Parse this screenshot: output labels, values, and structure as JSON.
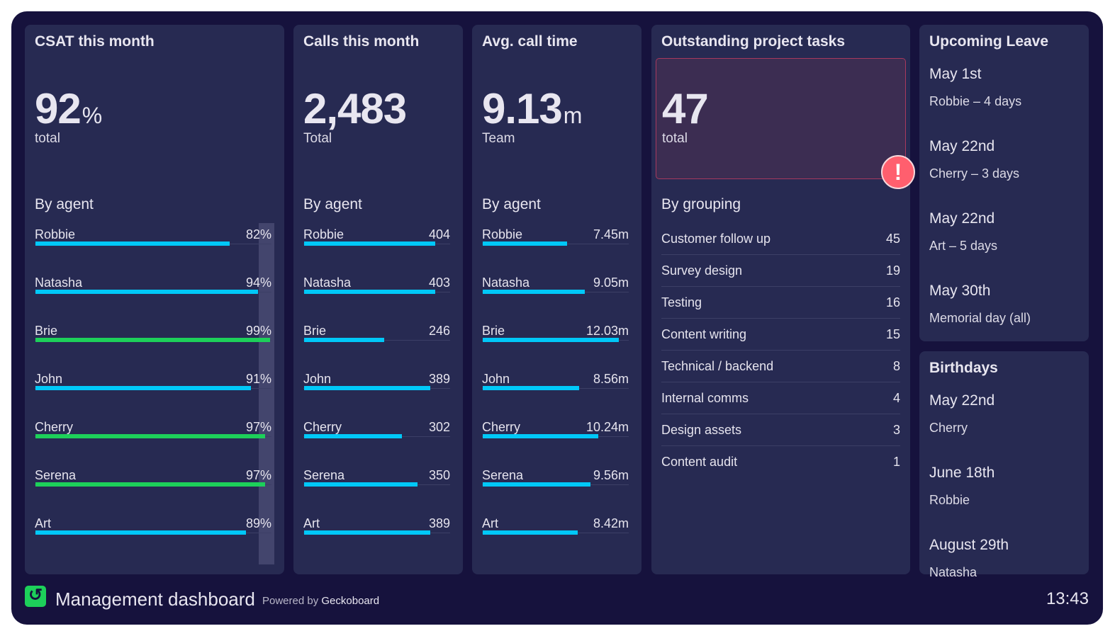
{
  "colors": {
    "background": "#16123d",
    "panel": "#272a52",
    "bar": "#00c8f8",
    "bar_good": "#1dd05a",
    "alert": "#ff5f6e"
  },
  "csat": {
    "title": "CSAT this month",
    "value": "92",
    "unit": "%",
    "label": "total",
    "section": "By agent",
    "max": 100,
    "good_threshold": 95,
    "rows": [
      {
        "name": "Robbie",
        "value": 82,
        "display": "82%"
      },
      {
        "name": "Natasha",
        "value": 94,
        "display": "94%"
      },
      {
        "name": "Brie",
        "value": 99,
        "display": "99%"
      },
      {
        "name": "John",
        "value": 91,
        "display": "91%"
      },
      {
        "name": "Cherry",
        "value": 97,
        "display": "97%"
      },
      {
        "name": "Serena",
        "value": 97,
        "display": "97%"
      },
      {
        "name": "Art",
        "value": 89,
        "display": "89%"
      }
    ]
  },
  "calls": {
    "title": "Calls this month",
    "value": "2,483",
    "label": "Total",
    "section": "By agent",
    "max": 452,
    "rows": [
      {
        "name": "Robbie",
        "value": 404,
        "display": "404"
      },
      {
        "name": "Natasha",
        "value": 403,
        "display": "403"
      },
      {
        "name": "Brie",
        "value": 246,
        "display": "246"
      },
      {
        "name": "John",
        "value": 389,
        "display": "389"
      },
      {
        "name": "Cherry",
        "value": 302,
        "display": "302"
      },
      {
        "name": "Serena",
        "value": 350,
        "display": "350"
      },
      {
        "name": "Art",
        "value": 389,
        "display": "389"
      }
    ]
  },
  "avg": {
    "title": "Avg. call time",
    "value": "9.13",
    "unit": "m",
    "label": "Team",
    "section": "By agent",
    "max": 13,
    "rows": [
      {
        "name": "Robbie",
        "value": 7.45,
        "display": "7.45m"
      },
      {
        "name": "Natasha",
        "value": 9.05,
        "display": "9.05m"
      },
      {
        "name": "Brie",
        "value": 12.03,
        "display": "12.03m"
      },
      {
        "name": "John",
        "value": 8.56,
        "display": "8.56m"
      },
      {
        "name": "Cherry",
        "value": 10.24,
        "display": "10.24m"
      },
      {
        "name": "Serena",
        "value": 9.56,
        "display": "9.56m"
      },
      {
        "name": "Art",
        "value": 8.42,
        "display": "8.42m"
      }
    ]
  },
  "tasks": {
    "title": "Outstanding project tasks",
    "value": "47",
    "label": "total",
    "alert_icon": "exclamation-icon",
    "section": "By grouping",
    "rows": [
      {
        "name": "Customer follow up",
        "value": "45"
      },
      {
        "name": "Survey design",
        "value": "19"
      },
      {
        "name": "Testing",
        "value": "16"
      },
      {
        "name": "Content writing",
        "value": "15"
      },
      {
        "name": "Technical / backend",
        "value": "8"
      },
      {
        "name": "Internal comms",
        "value": "4"
      },
      {
        "name": "Design assets",
        "value": "3"
      },
      {
        "name": "Content audit",
        "value": "1"
      }
    ]
  },
  "leave": {
    "title": "Upcoming Leave",
    "items": [
      {
        "date": "May 1st",
        "text": "Robbie – 4 days"
      },
      {
        "date": "May 22nd",
        "text": "Cherry – 3 days"
      },
      {
        "date": "May 22nd",
        "text": "Art – 5 days"
      },
      {
        "date": "May 30th",
        "text": "Memorial day (all)"
      }
    ]
  },
  "birthdays": {
    "title": "Birthdays",
    "items": [
      {
        "date": "May 22nd",
        "text": "Cherry"
      },
      {
        "date": "June 18th",
        "text": "Robbie"
      },
      {
        "date": "August 29th",
        "text": "Natasha"
      }
    ]
  },
  "footer": {
    "title": "Management dashboard",
    "powered_prefix": "Powered by",
    "powered_brand": "Geckoboard",
    "time": "13:43"
  }
}
